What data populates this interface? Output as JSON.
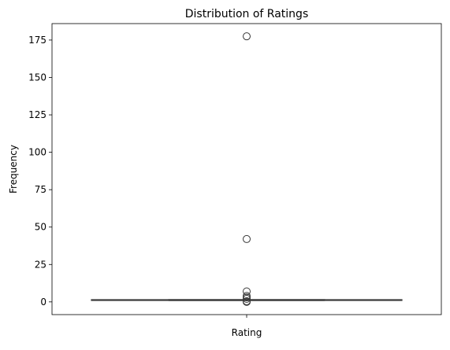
{
  "chart_data": {
    "type": "box",
    "title": "Distribution of Ratings",
    "ylabel": "Frequency",
    "categories": [
      "Rating"
    ],
    "boxes": [
      {
        "whisker_low": 1,
        "q1": 1,
        "median": 1,
        "q3": 1.5,
        "whisker_high": 1.5,
        "outliers": [
          0,
          0.5,
          2,
          3,
          4,
          7,
          42,
          177.5
        ]
      }
    ],
    "color": "#3a3a3a",
    "ylim": [
      -8.5,
      186
    ],
    "yticks": [
      0,
      25,
      50,
      75,
      100,
      125,
      150,
      175
    ],
    "grid": false
  }
}
